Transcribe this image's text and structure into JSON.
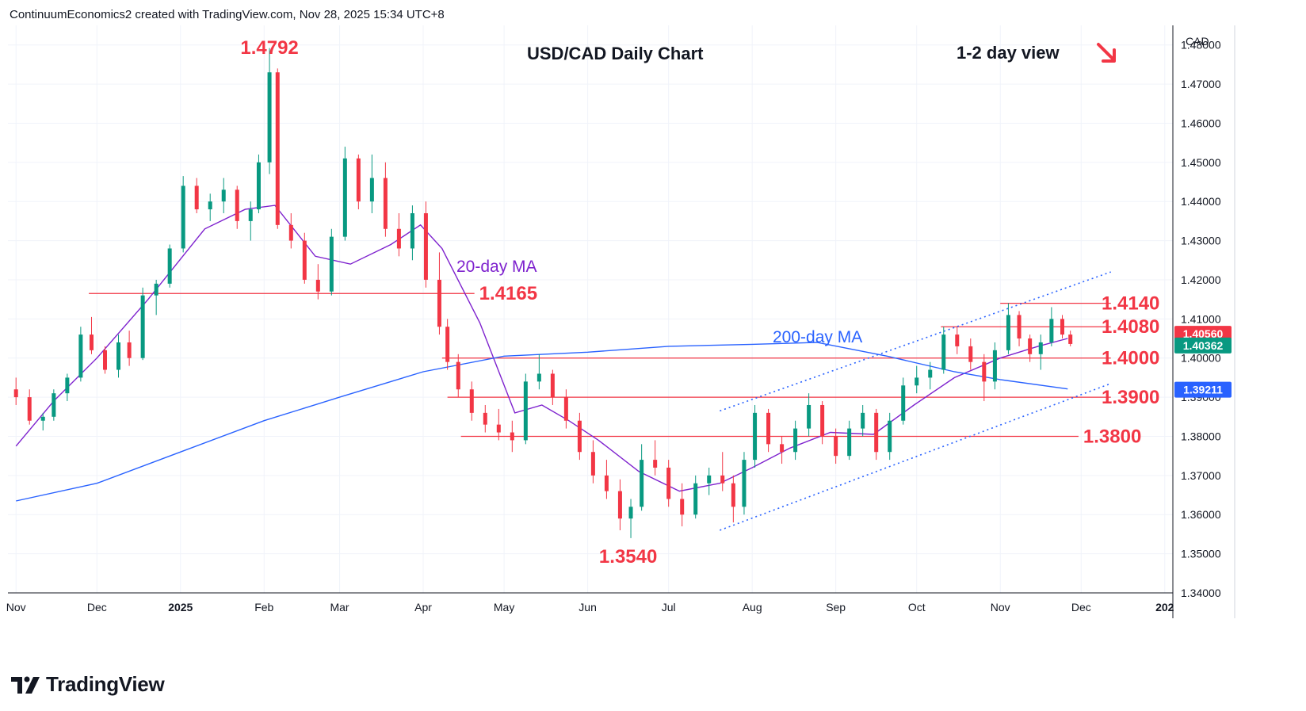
{
  "header": {
    "created_text": "ContinuumEconomics2 created with TradingView.com, Nov 28, 2025 15:34 UTC+8"
  },
  "brand": {
    "name": "TradingView"
  },
  "chart_data": {
    "type": "candlestick",
    "title": "USD/CAD Daily Chart",
    "subtitle": "1-2 day view",
    "direction": "down",
    "currency_label": "CAD",
    "ylim": [
      1.34,
      1.485
    ],
    "y_ticks": [
      "1.48000",
      "1.47000",
      "1.46000",
      "1.45000",
      "1.44000",
      "1.43000",
      "1.42000",
      "1.41000",
      "1.40000",
      "1.39000",
      "1.38000",
      "1.37000",
      "1.36000",
      "1.35000",
      "1.34000"
    ],
    "x_ticks": [
      "Nov",
      "Dec",
      "2025",
      "Feb",
      "Mar",
      "Apr",
      "May",
      "Jun",
      "Jul",
      "Aug",
      "Sep",
      "Oct",
      "Nov",
      "Dec",
      "202"
    ],
    "x_tick_dates": [
      "2024-11-01",
      "2024-12-01",
      "2025-01-01",
      "2025-02-01",
      "2025-03-01",
      "2025-04-01",
      "2025-05-01",
      "2025-06-01",
      "2025-07-01",
      "2025-08-01",
      "2025-09-01",
      "2025-10-01",
      "2025-11-01",
      "2025-12-01",
      "2026-01-01"
    ],
    "price_badges": [
      {
        "value": "1.40560",
        "color": "#f23645"
      },
      {
        "value": "1.40362",
        "color": "#089981"
      },
      {
        "value": "1.39211",
        "color": "#2962ff"
      }
    ],
    "levels": [
      {
        "value": 1.4165,
        "label": "1.4165",
        "from": "2024-11-28",
        "to": "2025-04-20"
      },
      {
        "value": 1.414,
        "label": "1.4140",
        "from": "2025-11-01",
        "to": "2025-12-12"
      },
      {
        "value": 1.408,
        "label": "1.4080",
        "from": "2025-10-10",
        "to": "2025-12-12"
      },
      {
        "value": 1.4,
        "label": "1.4000",
        "from": "2025-04-08",
        "to": "2025-12-12"
      },
      {
        "value": 1.39,
        "label": "1.3900",
        "from": "2025-04-10",
        "to": "2025-12-12"
      },
      {
        "value": 1.38,
        "label": "1.3800",
        "from": "2025-04-15",
        "to": "2025-11-30"
      }
    ],
    "extremes": [
      {
        "label": "1.4792",
        "date": "2025-02-03",
        "value": 1.4792,
        "position": "above"
      },
      {
        "label": "1.3540",
        "date": "2025-06-16",
        "value": 1.354,
        "position": "below"
      }
    ],
    "channel": {
      "upper": [
        [
          "2025-07-20",
          1.3865
        ],
        [
          "2025-12-12",
          1.422
        ]
      ],
      "lower": [
        [
          "2025-07-20",
          1.356
        ],
        [
          "2025-12-12",
          1.3935
        ]
      ]
    },
    "series": [
      {
        "name": "20-day MA",
        "color": "#7e22ce",
        "points": [
          [
            "2024-11-01",
            1.3775
          ],
          [
            "2024-11-15",
            1.389
          ],
          [
            "2024-12-01",
            1.4
          ],
          [
            "2024-12-20",
            1.415
          ],
          [
            "2025-01-10",
            1.433
          ],
          [
            "2025-01-25",
            1.438
          ],
          [
            "2025-02-05",
            1.439
          ],
          [
            "2025-02-20",
            1.426
          ],
          [
            "2025-03-05",
            1.424
          ],
          [
            "2025-03-20",
            1.429
          ],
          [
            "2025-03-31",
            1.434
          ],
          [
            "2025-04-08",
            1.428
          ],
          [
            "2025-04-22",
            1.409
          ],
          [
            "2025-05-05",
            1.386
          ],
          [
            "2025-05-15",
            1.388
          ],
          [
            "2025-05-25",
            1.384
          ],
          [
            "2025-06-05",
            1.379
          ],
          [
            "2025-06-20",
            1.371
          ],
          [
            "2025-07-05",
            1.366
          ],
          [
            "2025-07-20",
            1.368
          ],
          [
            "2025-08-01",
            1.372
          ],
          [
            "2025-08-15",
            1.377
          ],
          [
            "2025-08-30",
            1.381
          ],
          [
            "2025-09-15",
            1.3805
          ],
          [
            "2025-09-30",
            1.388
          ],
          [
            "2025-10-15",
            1.395
          ],
          [
            "2025-11-01",
            1.4
          ],
          [
            "2025-11-15",
            1.403
          ],
          [
            "2025-11-26",
            1.405
          ]
        ]
      },
      {
        "name": "200-day MA",
        "color": "#2962ff",
        "points": [
          [
            "2024-11-01",
            1.3635
          ],
          [
            "2024-12-01",
            1.368
          ],
          [
            "2025-01-01",
            1.376
          ],
          [
            "2025-02-01",
            1.384
          ],
          [
            "2025-03-01",
            1.39
          ],
          [
            "2025-04-01",
            1.3965
          ],
          [
            "2025-05-01",
            1.4005
          ],
          [
            "2025-06-01",
            1.4015
          ],
          [
            "2025-07-01",
            1.403
          ],
          [
            "2025-08-01",
            1.4035
          ],
          [
            "2025-08-25",
            1.404
          ],
          [
            "2025-09-20",
            1.4005
          ],
          [
            "2025-10-15",
            1.3965
          ],
          [
            "2025-11-01",
            1.3945
          ],
          [
            "2025-11-26",
            1.3921
          ]
        ]
      }
    ],
    "candles": [
      [
        "2024-11-01",
        1.392,
        1.395,
        1.388,
        1.39
      ],
      [
        "2024-11-06",
        1.39,
        1.392,
        1.383,
        1.384
      ],
      [
        "2024-11-11",
        1.384,
        1.386,
        1.3815,
        1.385
      ],
      [
        "2024-11-15",
        1.385,
        1.392,
        1.384,
        1.391
      ],
      [
        "2024-11-20",
        1.391,
        1.396,
        1.389,
        1.395
      ],
      [
        "2024-11-25",
        1.395,
        1.408,
        1.394,
        1.406
      ],
      [
        "2024-11-29",
        1.406,
        1.4105,
        1.401,
        1.402
      ],
      [
        "2024-12-04",
        1.402,
        1.403,
        1.396,
        1.397
      ],
      [
        "2024-12-09",
        1.397,
        1.406,
        1.395,
        1.404
      ],
      [
        "2024-12-13",
        1.404,
        1.407,
        1.398,
        1.4
      ],
      [
        "2024-12-18",
        1.4,
        1.418,
        1.3995,
        1.416
      ],
      [
        "2024-12-23",
        1.416,
        1.42,
        1.411,
        1.419
      ],
      [
        "2024-12-28",
        1.419,
        1.429,
        1.418,
        1.428
      ],
      [
        "2025-01-02",
        1.428,
        1.4465,
        1.427,
        1.444
      ],
      [
        "2025-01-07",
        1.444,
        1.446,
        1.437,
        1.438
      ],
      [
        "2025-01-12",
        1.438,
        1.442,
        1.435,
        1.44
      ],
      [
        "2025-01-17",
        1.44,
        1.446,
        1.437,
        1.443
      ],
      [
        "2025-01-22",
        1.443,
        1.444,
        1.433,
        1.435
      ],
      [
        "2025-01-27",
        1.435,
        1.44,
        1.43,
        1.438
      ],
      [
        "2025-01-30",
        1.438,
        1.452,
        1.437,
        1.45
      ],
      [
        "2025-02-03",
        1.45,
        1.4792,
        1.447,
        1.473
      ],
      [
        "2025-02-06",
        1.473,
        1.474,
        1.433,
        1.434
      ],
      [
        "2025-02-11",
        1.434,
        1.437,
        1.428,
        1.43
      ],
      [
        "2025-02-16",
        1.43,
        1.432,
        1.419,
        1.42
      ],
      [
        "2025-02-21",
        1.42,
        1.424,
        1.415,
        1.417
      ],
      [
        "2025-02-26",
        1.417,
        1.433,
        1.416,
        1.431
      ],
      [
        "2025-03-03",
        1.431,
        1.454,
        1.43,
        1.451
      ],
      [
        "2025-03-08",
        1.451,
        1.452,
        1.438,
        1.44
      ],
      [
        "2025-03-13",
        1.44,
        1.452,
        1.437,
        1.446
      ],
      [
        "2025-03-18",
        1.446,
        1.45,
        1.431,
        1.433
      ],
      [
        "2025-03-23",
        1.433,
        1.437,
        1.426,
        1.428
      ],
      [
        "2025-03-28",
        1.428,
        1.439,
        1.425,
        1.437
      ],
      [
        "2025-04-02",
        1.437,
        1.44,
        1.418,
        1.42
      ],
      [
        "2025-04-07",
        1.42,
        1.427,
        1.406,
        1.408
      ],
      [
        "2025-04-10",
        1.408,
        1.41,
        1.397,
        1.399
      ],
      [
        "2025-04-14",
        1.399,
        1.401,
        1.39,
        1.392
      ],
      [
        "2025-04-19",
        1.392,
        1.394,
        1.384,
        1.386
      ],
      [
        "2025-04-24",
        1.386,
        1.388,
        1.381,
        1.383
      ],
      [
        "2025-04-29",
        1.383,
        1.387,
        1.379,
        1.381
      ],
      [
        "2025-05-04",
        1.381,
        1.384,
        1.376,
        1.379
      ],
      [
        "2025-05-09",
        1.379,
        1.396,
        1.378,
        1.394
      ],
      [
        "2025-05-14",
        1.394,
        1.401,
        1.392,
        1.396
      ],
      [
        "2025-05-19",
        1.396,
        1.397,
        1.388,
        1.39
      ],
      [
        "2025-05-24",
        1.39,
        1.392,
        1.382,
        1.384
      ],
      [
        "2025-05-29",
        1.384,
        1.386,
        1.374,
        1.376
      ],
      [
        "2025-06-03",
        1.376,
        1.379,
        1.368,
        1.37
      ],
      [
        "2025-06-08",
        1.37,
        1.374,
        1.364,
        1.366
      ],
      [
        "2025-06-13",
        1.366,
        1.369,
        1.356,
        1.359
      ],
      [
        "2025-06-17",
        1.359,
        1.364,
        1.354,
        1.362
      ],
      [
        "2025-06-21",
        1.362,
        1.378,
        1.361,
        1.374
      ],
      [
        "2025-06-26",
        1.374,
        1.379,
        1.37,
        1.372
      ],
      [
        "2025-07-01",
        1.372,
        1.374,
        1.362,
        1.364
      ],
      [
        "2025-07-06",
        1.364,
        1.368,
        1.357,
        1.36
      ],
      [
        "2025-07-11",
        1.36,
        1.37,
        1.359,
        1.368
      ],
      [
        "2025-07-16",
        1.368,
        1.372,
        1.365,
        1.37
      ],
      [
        "2025-07-21",
        1.37,
        1.376,
        1.366,
        1.368
      ],
      [
        "2025-07-25",
        1.368,
        1.37,
        1.358,
        1.362
      ],
      [
        "2025-07-29",
        1.362,
        1.376,
        1.36,
        1.374
      ],
      [
        "2025-08-02",
        1.374,
        1.388,
        1.372,
        1.386
      ],
      [
        "2025-08-07",
        1.386,
        1.387,
        1.376,
        1.378
      ],
      [
        "2025-08-12",
        1.378,
        1.38,
        1.373,
        1.376
      ],
      [
        "2025-08-17",
        1.376,
        1.384,
        1.374,
        1.382
      ],
      [
        "2025-08-22",
        1.382,
        1.391,
        1.38,
        1.388
      ],
      [
        "2025-08-27",
        1.388,
        1.389,
        1.378,
        1.38
      ],
      [
        "2025-09-01",
        1.38,
        1.382,
        1.373,
        1.375
      ],
      [
        "2025-09-06",
        1.375,
        1.384,
        1.374,
        1.382
      ],
      [
        "2025-09-11",
        1.382,
        1.388,
        1.38,
        1.386
      ],
      [
        "2025-09-16",
        1.386,
        1.387,
        1.374,
        1.376
      ],
      [
        "2025-09-21",
        1.376,
        1.386,
        1.374,
        1.384
      ],
      [
        "2025-09-26",
        1.384,
        1.395,
        1.383,
        1.393
      ],
      [
        "2025-10-01",
        1.393,
        1.398,
        1.391,
        1.395
      ],
      [
        "2025-10-06",
        1.395,
        1.399,
        1.392,
        1.397
      ],
      [
        "2025-10-11",
        1.397,
        1.408,
        1.396,
        1.406
      ],
      [
        "2025-10-16",
        1.406,
        1.408,
        1.401,
        1.403
      ],
      [
        "2025-10-21",
        1.403,
        1.405,
        1.397,
        1.399
      ],
      [
        "2025-10-26",
        1.399,
        1.401,
        1.389,
        1.394
      ],
      [
        "2025-10-30",
        1.394,
        1.404,
        1.392,
        1.402
      ],
      [
        "2025-11-04",
        1.402,
        1.414,
        1.401,
        1.411
      ],
      [
        "2025-11-08",
        1.411,
        1.412,
        1.403,
        1.405
      ],
      [
        "2025-11-12",
        1.405,
        1.406,
        1.399,
        1.401
      ],
      [
        "2025-11-16",
        1.401,
        1.406,
        1.397,
        1.404
      ],
      [
        "2025-11-20",
        1.404,
        1.413,
        1.403,
        1.41
      ],
      [
        "2025-11-24",
        1.41,
        1.411,
        1.405,
        1.406
      ],
      [
        "2025-11-27",
        1.406,
        1.407,
        1.403,
        1.4036
      ]
    ]
  }
}
